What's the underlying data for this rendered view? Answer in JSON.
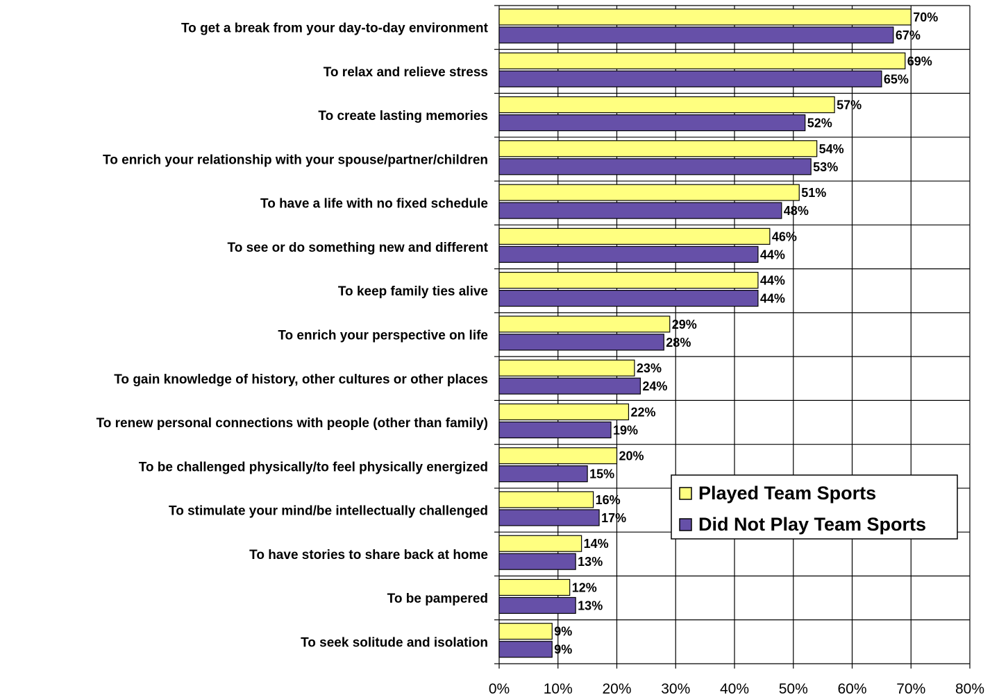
{
  "chart_data": {
    "type": "bar",
    "orientation": "horizontal",
    "categories": [
      "To get a break from your day-to-day environment",
      "To relax and relieve stress",
      "To create lasting memories",
      "To enrich your relationship with your spouse/partner/children",
      "To have a life with no fixed schedule",
      "To see or do something new and different",
      "To keep family ties alive",
      "To enrich your perspective on life",
      "To gain knowledge of history, other cultures or other places",
      "To renew personal connections with people (other than family)",
      "To be challenged physically/to feel physically energized",
      "To stimulate your mind/be intellectually challenged",
      "To have stories to share back at home",
      "To be pampered",
      "To seek solitude and isolation"
    ],
    "series": [
      {
        "name": "Played Team Sports",
        "color": "#FFFF80",
        "values": [
          70,
          69,
          57,
          54,
          51,
          46,
          44,
          29,
          23,
          22,
          20,
          16,
          14,
          12,
          9
        ]
      },
      {
        "name": "Did Not Play Team Sports",
        "color": "#6650A8",
        "values": [
          67,
          65,
          52,
          53,
          48,
          44,
          44,
          28,
          24,
          19,
          15,
          17,
          13,
          13,
          9
        ]
      }
    ],
    "value_labels": [
      [
        "70%",
        "69%",
        "57%",
        "54%",
        "51%",
        "46%",
        "44%",
        "29%",
        "23%",
        "22%",
        "20%",
        "16%",
        "14%",
        "12%",
        "9%"
      ],
      [
        "67%",
        "65%",
        "52%",
        "53%",
        "48%",
        "44%",
        "44%",
        "28%",
        "24%",
        "19%",
        "15%",
        "17%",
        "13%",
        "13%",
        "9%"
      ]
    ],
    "xlim": [
      0,
      80
    ],
    "xticks": [
      0,
      10,
      20,
      30,
      40,
      50,
      60,
      70,
      80
    ],
    "xtick_labels": [
      "0%",
      "10%",
      "20%",
      "30%",
      "40%",
      "50%",
      "60%",
      "70%",
      "80%"
    ],
    "grid": true,
    "legend_position": "lower-right"
  }
}
